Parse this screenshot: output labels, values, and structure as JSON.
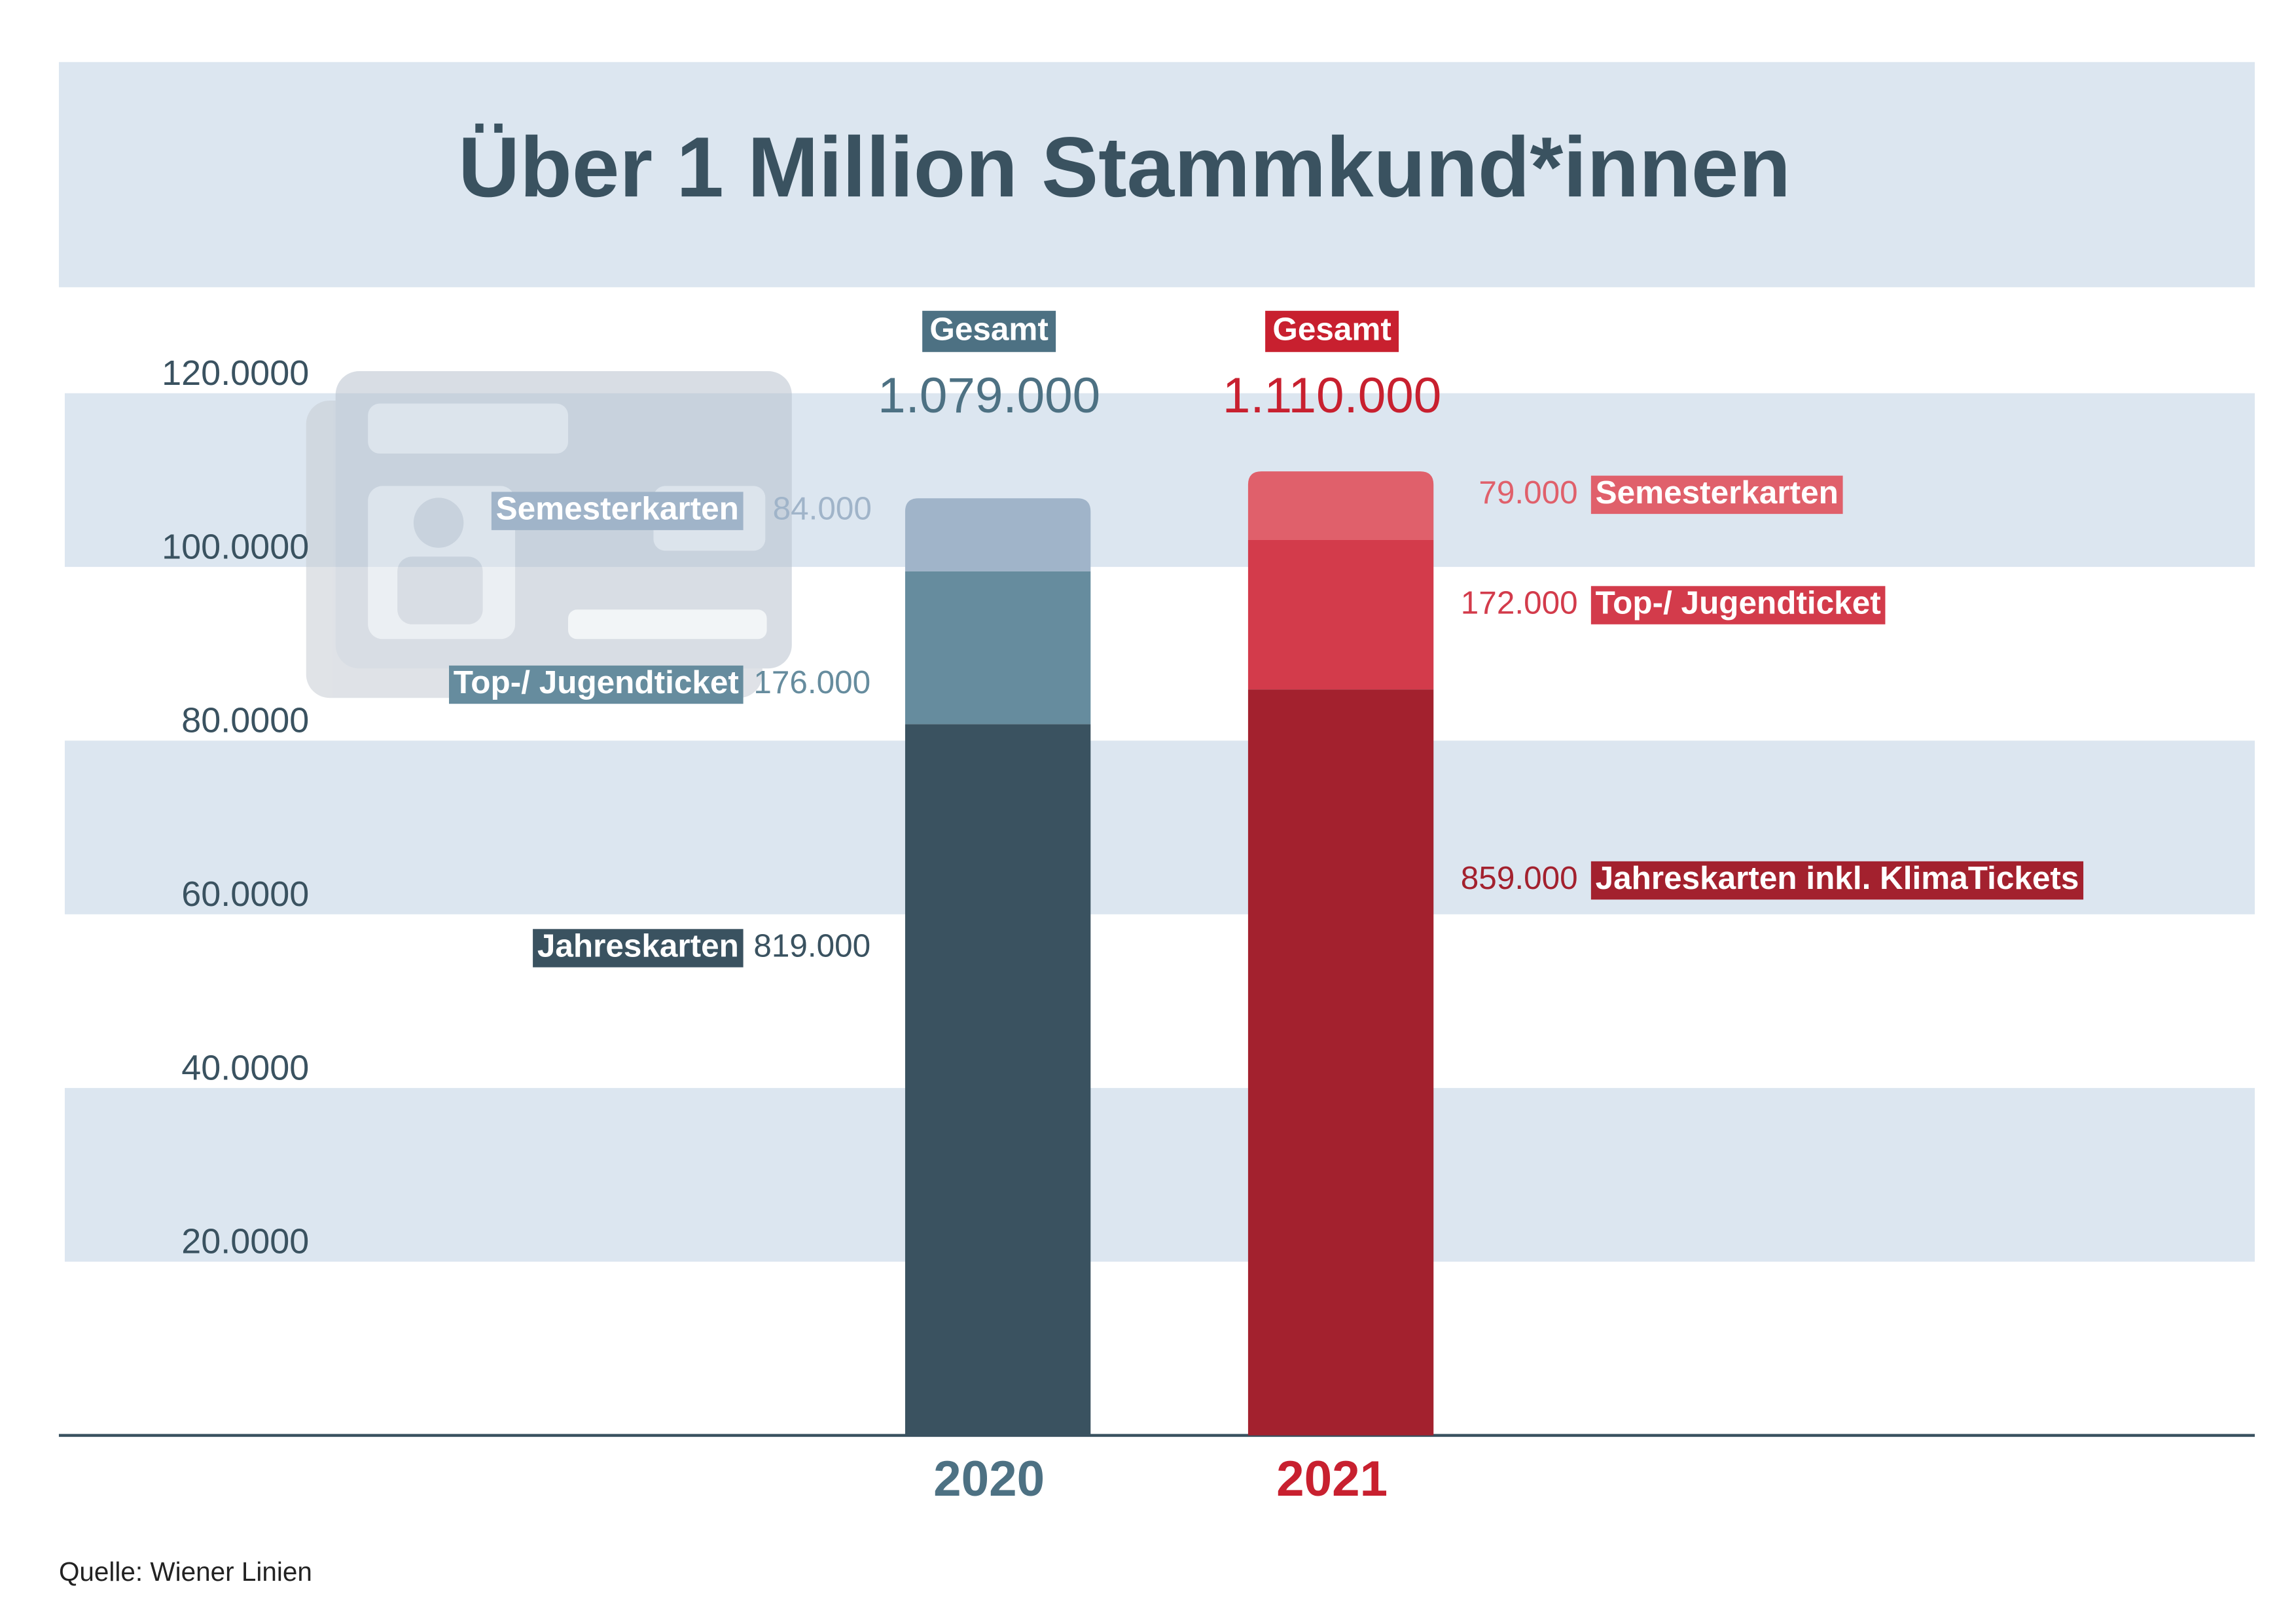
{
  "chart_data": {
    "type": "stacked-bar",
    "title": "Über 1 Million Stammkund*innen",
    "categories": [
      "2020",
      "2021"
    ],
    "category_colors": [
      "#4d7183",
      "#c8202f"
    ],
    "series": [
      {
        "labels": [
          "Jahreskarten",
          "Jahreskarten inkl. KlimaTickets"
        ],
        "colors": [
          "#3a5260",
          "#a3212e"
        ],
        "values": [
          81.9,
          85.9
        ],
        "value_labels": [
          "819.000",
          "859.000"
        ]
      },
      {
        "labels": [
          "Top-/ Jugendticket",
          "Top-/ Jugendticket"
        ],
        "colors": [
          "#668c9e",
          "#d33b4b"
        ],
        "values": [
          17.6,
          17.2
        ],
        "value_labels": [
          "176.000",
          "172.000"
        ]
      },
      {
        "labels": [
          "Semesterkarten",
          "Semesterkarten"
        ],
        "colors": [
          "#a0b4c9",
          "#e0606b"
        ],
        "values": [
          8.4,
          7.9
        ],
        "value_labels": [
          "84.000",
          "79.000"
        ]
      }
    ],
    "total_label": "Gesamt",
    "totals": {
      "values": [
        107.9,
        111.0
      ],
      "value_labels": [
        "1.079.000",
        "1.110.000"
      ]
    },
    "ylim": [
      0,
      120
    ],
    "yticks": [
      {
        "value": 20,
        "label": "20.0000"
      },
      {
        "value": 40,
        "label": "40.0000"
      },
      {
        "value": 60,
        "label": "60.0000"
      },
      {
        "value": 80,
        "label": "80.0000"
      },
      {
        "value": 100,
        "label": "100.0000"
      },
      {
        "value": 120,
        "label": "120.0000"
      }
    ],
    "grid": true,
    "source": "Quelle: Wiener Linien"
  }
}
